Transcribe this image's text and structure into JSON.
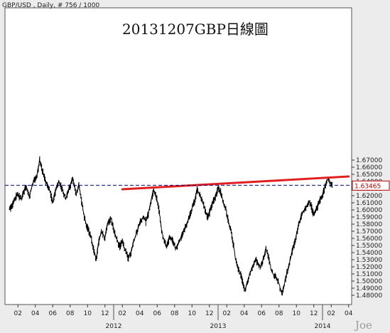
{
  "header": {
    "info": "GBP/USD , Daily, # 756 / 1000"
  },
  "watermark": "Joe",
  "chart_data": {
    "type": "line",
    "title": "20131207GBP日線圖",
    "y_ticks": [
      "1.67000",
      "1.66000",
      "1.65000",
      "1.64000",
      "1.63000",
      "1.62000",
      "1.61000",
      "1.60000",
      "1.59000",
      "1.58000",
      "1.57000",
      "1.56000",
      "1.55000",
      "1.54000",
      "1.53000",
      "1.52000",
      "1.51000",
      "1.50000",
      "1.49000",
      "1.48000"
    ],
    "ylim": [
      1.475,
      1.678
    ],
    "x_ticks": [
      {
        "label": "02",
        "m": 1
      },
      {
        "label": "04",
        "m": 3
      },
      {
        "label": "06",
        "m": 5
      },
      {
        "label": "08",
        "m": 7
      },
      {
        "label": "10",
        "m": 9
      },
      {
        "label": "12",
        "m": 11
      },
      {
        "label": "02",
        "m": 13
      },
      {
        "label": "04",
        "m": 15
      },
      {
        "label": "06",
        "m": 17
      },
      {
        "label": "08",
        "m": 19
      },
      {
        "label": "10",
        "m": 21
      },
      {
        "label": "12",
        "m": 23
      },
      {
        "label": "02",
        "m": 25
      },
      {
        "label": "04",
        "m": 27
      },
      {
        "label": "06",
        "m": 29
      },
      {
        "label": "08",
        "m": 31
      },
      {
        "label": "10",
        "m": 33
      },
      {
        "label": "12",
        "m": 35
      },
      {
        "label": "02",
        "m": 37
      },
      {
        "label": "04",
        "m": 39
      }
    ],
    "year_labels": [
      {
        "label": "2012",
        "m": 12
      },
      {
        "label": "2013",
        "m": 24
      },
      {
        "label": "2014",
        "m": 36
      }
    ],
    "x_unit": "months since Jan 2011",
    "series": [
      {
        "values": [
          [
            0.0,
            1.6
          ],
          [
            0.5,
            1.61
          ],
          [
            0.9,
            1.622
          ],
          [
            1.4,
            1.615
          ],
          [
            1.9,
            1.632
          ],
          [
            2.3,
            1.618
          ],
          [
            2.8,
            1.64
          ],
          [
            3.2,
            1.648
          ],
          [
            3.5,
            1.67
          ],
          [
            3.8,
            1.655
          ],
          [
            4.2,
            1.64
          ],
          [
            4.6,
            1.63
          ],
          [
            5.0,
            1.61
          ],
          [
            5.3,
            1.625
          ],
          [
            5.7,
            1.64
          ],
          [
            6.1,
            1.628
          ],
          [
            6.5,
            1.615
          ],
          [
            6.9,
            1.63
          ],
          [
            7.3,
            1.645
          ],
          [
            7.7,
            1.62
          ],
          [
            8.0,
            1.635
          ],
          [
            8.3,
            1.612
          ],
          [
            8.7,
            1.585
          ],
          [
            9.0,
            1.575
          ],
          [
            9.3,
            1.565
          ],
          [
            9.7,
            1.545
          ],
          [
            10.0,
            1.53
          ],
          [
            10.3,
            1.555
          ],
          [
            10.6,
            1.57
          ],
          [
            11.0,
            1.56
          ],
          [
            11.3,
            1.58
          ],
          [
            11.7,
            1.588
          ],
          [
            12.0,
            1.572
          ],
          [
            12.3,
            1.56
          ],
          [
            12.7,
            1.548
          ],
          [
            13.0,
            1.555
          ],
          [
            13.4,
            1.54
          ],
          [
            13.7,
            1.532
          ],
          [
            14.0,
            1.54
          ],
          [
            14.3,
            1.555
          ],
          [
            14.7,
            1.57
          ],
          [
            15.0,
            1.582
          ],
          [
            15.4,
            1.59
          ],
          [
            15.7,
            1.583
          ],
          [
            16.0,
            1.595
          ],
          [
            16.3,
            1.612
          ],
          [
            16.6,
            1.628
          ],
          [
            16.9,
            1.618
          ],
          [
            17.2,
            1.6
          ],
          [
            17.5,
            1.572
          ],
          [
            17.8,
            1.555
          ],
          [
            18.1,
            1.548
          ],
          [
            18.4,
            1.56
          ],
          [
            18.8,
            1.556
          ],
          [
            19.1,
            1.545
          ],
          [
            19.4,
            1.55
          ],
          [
            19.7,
            1.56
          ],
          [
            20.0,
            1.57
          ],
          [
            20.4,
            1.578
          ],
          [
            20.7,
            1.59
          ],
          [
            21.0,
            1.602
          ],
          [
            21.3,
            1.612
          ],
          [
            21.6,
            1.628
          ],
          [
            21.9,
            1.62
          ],
          [
            22.2,
            1.612
          ],
          [
            22.5,
            1.6
          ],
          [
            22.8,
            1.59
          ],
          [
            23.1,
            1.598
          ],
          [
            23.4,
            1.61
          ],
          [
            23.7,
            1.618
          ],
          [
            24.0,
            1.63
          ],
          [
            24.3,
            1.625
          ],
          [
            24.6,
            1.61
          ],
          [
            24.9,
            1.6
          ],
          [
            25.2,
            1.582
          ],
          [
            25.5,
            1.568
          ],
          [
            25.8,
            1.548
          ],
          [
            26.0,
            1.53
          ],
          [
            26.3,
            1.516
          ],
          [
            26.6,
            1.508
          ],
          [
            26.9,
            1.495
          ],
          [
            27.1,
            1.485
          ],
          [
            27.4,
            1.5
          ],
          [
            27.7,
            1.512
          ],
          [
            28.0,
            1.52
          ],
          [
            28.3,
            1.53
          ],
          [
            28.6,
            1.525
          ],
          [
            28.9,
            1.52
          ],
          [
            29.2,
            1.53
          ],
          [
            29.5,
            1.545
          ],
          [
            29.8,
            1.533
          ],
          [
            30.1,
            1.515
          ],
          [
            30.4,
            1.508
          ],
          [
            30.7,
            1.505
          ],
          [
            31.0,
            1.496
          ],
          [
            31.2,
            1.486
          ],
          [
            31.4,
            1.482
          ],
          [
            31.7,
            1.5
          ],
          [
            32.0,
            1.515
          ],
          [
            32.3,
            1.53
          ],
          [
            32.6,
            1.545
          ],
          [
            32.9,
            1.558
          ],
          [
            33.2,
            1.575
          ],
          [
            33.5,
            1.59
          ],
          [
            33.8,
            1.598
          ],
          [
            34.1,
            1.602
          ],
          [
            34.4,
            1.612
          ],
          [
            34.7,
            1.605
          ],
          [
            35.0,
            1.592
          ],
          [
            35.3,
            1.6
          ],
          [
            35.6,
            1.61
          ],
          [
            35.9,
            1.618
          ],
          [
            36.2,
            1.628
          ],
          [
            36.5,
            1.64
          ],
          [
            36.7,
            1.645
          ],
          [
            36.9,
            1.636
          ],
          [
            37.1,
            1.635
          ]
        ]
      }
    ],
    "current_price": "1.63465",
    "trendline": {
      "from": [
        13.0,
        1.629
      ],
      "to": [
        39.0,
        1.647
      ],
      "color": "#e02020"
    },
    "colors": {
      "price": "#000000",
      "trendline": "#e02020",
      "current_line": "#00008b",
      "current_label": "#c00000",
      "background": "#ffffff"
    }
  }
}
